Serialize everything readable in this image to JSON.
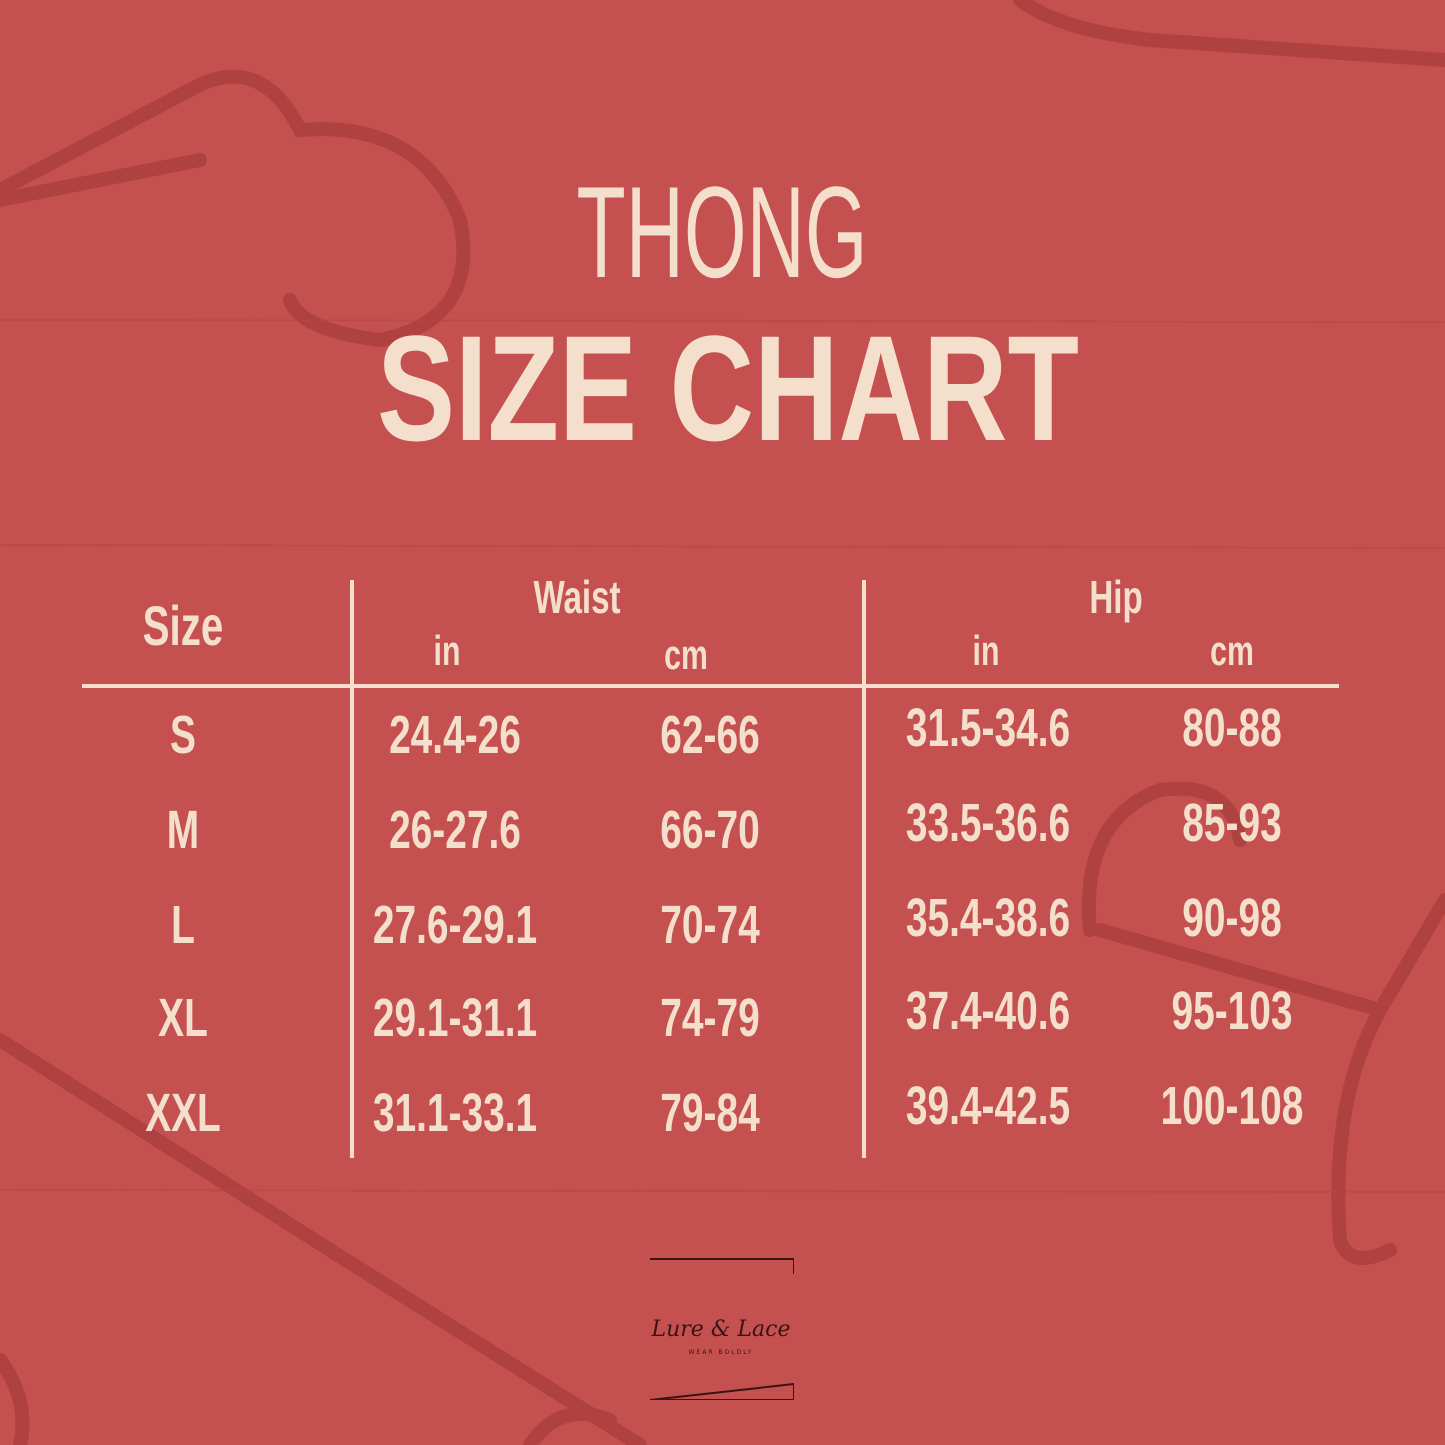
{
  "title_line1": "THONG",
  "title_line2": "SIZE CHART",
  "colors": {
    "background": "#c4504f",
    "text": "#f3dfcc",
    "hanger": "#a83c3c"
  },
  "table": {
    "size_header": "Size",
    "groups": [
      {
        "label": "Waist",
        "units": [
          "in",
          "cm"
        ]
      },
      {
        "label": "Hip",
        "units": [
          "in",
          "cm"
        ]
      }
    ],
    "rows": [
      {
        "size": "S",
        "waist_in": "24.4-26",
        "waist_cm": "62-66",
        "hip_in": "31.5-34.6",
        "hip_cm": "80-88"
      },
      {
        "size": "M",
        "waist_in": "26-27.6",
        "waist_cm": "66-70",
        "hip_in": "33.5-36.6",
        "hip_cm": "85-93"
      },
      {
        "size": "L",
        "waist_in": "27.6-29.1",
        "waist_cm": "70-74",
        "hip_in": "35.4-38.6",
        "hip_cm": "90-98"
      },
      {
        "size": "XL",
        "waist_in": "29.1-31.1",
        "waist_cm": "74-79",
        "hip_in": "37.4-40.6",
        "hip_cm": "95-103"
      },
      {
        "size": "XXL",
        "waist_in": "31.1-33.1",
        "waist_cm": "79-84",
        "hip_in": "39.4-42.5",
        "hip_cm": "100-108"
      }
    ]
  },
  "logo": {
    "name": "Lure & Lace",
    "tagline": "WEAR BOLDLY"
  }
}
